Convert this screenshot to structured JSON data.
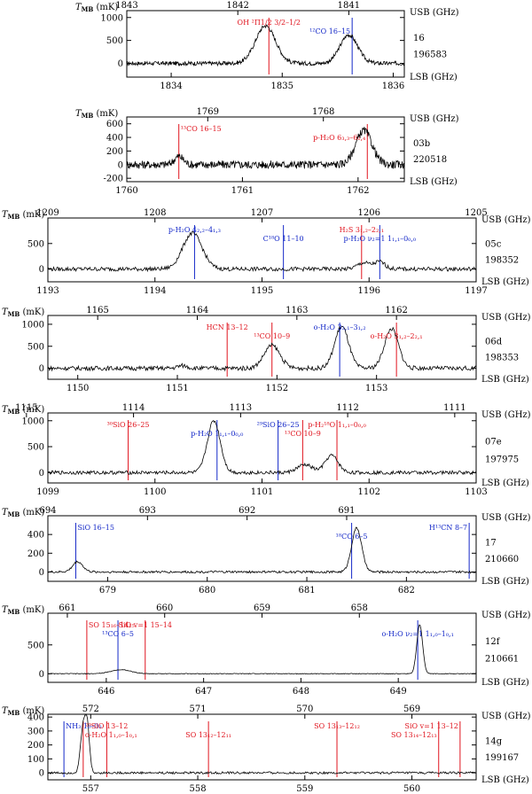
{
  "page": {
    "background": "#ffffff",
    "trace_color": "#000000",
    "red_line": "#e0141e",
    "blue_line": "#1428c8"
  },
  "chart_data": [
    {
      "type": "line",
      "y_title": "TMB (mK)",
      "usb_unit": "USB (GHz)",
      "lsb_unit": "LSB (GHz)",
      "band": "16",
      "obsid": "196583",
      "xlim": [
        1833.6,
        1836.1
      ],
      "ylim": [
        -300,
        1150
      ],
      "yticks": [
        0,
        500,
        1000
      ],
      "lsb_ticks": [
        1834,
        1835,
        1836
      ],
      "usb_ticks": [
        1843,
        1842,
        1841
      ],
      "usb_sum": 3676.6,
      "noise": 45,
      "baseline": [
        {
          "x": 1833.6,
          "y": 0
        },
        {
          "x": 1836.1,
          "y": 0
        }
      ],
      "peaks": [
        {
          "center": 1834.85,
          "amp": 820,
          "width": 0.09
        },
        {
          "center": 1835.6,
          "amp": 620,
          "width": 0.08
        }
      ],
      "lines": [
        {
          "x": 1834.88,
          "side": "LSB",
          "color": "red",
          "label": "OH ²Π1/2 3/2–1/2"
        },
        {
          "x": 1835.63,
          "side": "USB",
          "color": "blue",
          "label": "¹²CO 16–15"
        }
      ]
    },
    {
      "type": "line",
      "y_title": "TMB (mK)",
      "usb_unit": "USB (GHz)",
      "lsb_unit": "LSB (GHz)",
      "band": "03b",
      "obsid": "220518",
      "xlim": [
        1760,
        1762.4
      ],
      "ylim": [
        -250,
        700
      ],
      "yticks": [
        -200,
        0,
        200,
        400,
        600
      ],
      "lsb_ticks": [
        1760,
        1761,
        1762
      ],
      "usb_ticks": [
        1769,
        1768
      ],
      "usb_sum": 3529.7,
      "noise": 60,
      "baseline": [
        {
          "x": 1760,
          "y": 0
        },
        {
          "x": 1762.4,
          "y": 0
        }
      ],
      "peaks": [
        {
          "center": 1760.45,
          "amp": 120,
          "width": 0.04
        },
        {
          "center": 1762.05,
          "amp": 500,
          "width": 0.07
        }
      ],
      "lines": [
        {
          "x": 1760.45,
          "side": "LSB",
          "color": "red",
          "label": "¹³CO 16–15"
        },
        {
          "x": 1762.08,
          "side": "LSB",
          "color": "red",
          "label": "p-H₂O 6₃,₃–6₂,₄"
        }
      ]
    },
    {
      "type": "line",
      "y_title": "TMB (mK)",
      "usb_unit": "USB (GHz)",
      "lsb_unit": "LSB (GHz)",
      "band": "05c",
      "obsid": "198352",
      "xlim": [
        1193,
        1197
      ],
      "ylim": [
        -250,
        1000
      ],
      "yticks": [
        0,
        500
      ],
      "lsb_ticks": [
        1193,
        1194,
        1195,
        1196,
        1197
      ],
      "usb_ticks": [
        1209,
        1208,
        1207,
        1206,
        1205
      ],
      "usb_sum": 2402,
      "noise": 40,
      "baseline": [
        {
          "x": 1193,
          "y": 0
        },
        {
          "x": 1197,
          "y": 0
        }
      ],
      "peaks": [
        {
          "center": 1194.35,
          "amp": 700,
          "width": 0.09
        },
        {
          "center": 1195.95,
          "amp": 120,
          "width": 0.06
        },
        {
          "center": 1196.1,
          "amp": 140,
          "width": 0.05
        }
      ],
      "lines": [
        {
          "x": 1194.37,
          "side": "USB",
          "color": "blue",
          "label": "p-H₂O 4₂,₂–4₁,₃"
        },
        {
          "x": 1195.2,
          "side": "USB",
          "color": "blue",
          "label": "C¹⁸O 11–10"
        },
        {
          "x": 1195.93,
          "side": "LSB",
          "color": "red",
          "label": "H₂S 3₁,₂–2₂,₁"
        },
        {
          "x": 1196.1,
          "side": "USB",
          "color": "blue",
          "label": "p-H₂O ν₂=1 1₁,₁–0₀,₀"
        }
      ]
    },
    {
      "type": "line",
      "y_title": "TMB (mK)",
      "usb_unit": "USB (GHz)",
      "lsb_unit": "LSB (GHz)",
      "band": "06d",
      "obsid": "198353",
      "xlim": [
        1149.7,
        1154
      ],
      "ylim": [
        -250,
        1200
      ],
      "yticks": [
        0,
        500,
        1000
      ],
      "lsb_ticks": [
        1150,
        1151,
        1152,
        1153
      ],
      "usb_ticks": [
        1165,
        1164,
        1163,
        1162
      ],
      "usb_sum": 2315.2,
      "noise": 50,
      "baseline": [
        {
          "x": 1149.7,
          "y": 0
        },
        {
          "x": 1154,
          "y": 0
        }
      ],
      "peaks": [
        {
          "center": 1151.05,
          "amp": 60,
          "width": 0.05
        },
        {
          "center": 1151.95,
          "amp": 520,
          "width": 0.08
        },
        {
          "center": 1152.65,
          "amp": 950,
          "width": 0.07
        },
        {
          "center": 1153.15,
          "amp": 900,
          "width": 0.07
        }
      ],
      "lines": [
        {
          "x": 1151.5,
          "side": "LSB",
          "color": "red",
          "label": "HCN 13–12"
        },
        {
          "x": 1151.95,
          "side": "LSB",
          "color": "red",
          "label": "¹³CO 10–9"
        },
        {
          "x": 1152.63,
          "side": "USB",
          "color": "blue",
          "label": "o-H₂O 3₂,₁–3₁,₂"
        },
        {
          "x": 1153.2,
          "side": "LSB",
          "color": "red",
          "label": "o-H₂O 3₁,₂–2₂,₁"
        }
      ]
    },
    {
      "type": "line",
      "y_title": "TMB (mK)",
      "usb_unit": "USB (GHz)",
      "lsb_unit": "LSB (GHz)",
      "band": "07e",
      "obsid": "197975",
      "xlim": [
        1099,
        1103
      ],
      "ylim": [
        -200,
        1150
      ],
      "yticks": [
        0,
        500,
        1000
      ],
      "lsb_ticks": [
        1099,
        1100,
        1101,
        1102,
        1103
      ],
      "usb_ticks": [
        1115,
        1114,
        1113,
        1112,
        1111
      ],
      "usb_sum": 2213.8,
      "noise": 35,
      "baseline": [
        {
          "x": 1099,
          "y": 0
        },
        {
          "x": 1103,
          "y": 0
        }
      ],
      "peaks": [
        {
          "center": 1100.55,
          "amp": 1000,
          "width": 0.06
        },
        {
          "center": 1101.4,
          "amp": 150,
          "width": 0.07
        },
        {
          "center": 1101.65,
          "amp": 330,
          "width": 0.06
        }
      ],
      "lines": [
        {
          "x": 1099.75,
          "side": "LSB",
          "color": "red",
          "label": "³⁰SiO 26–25"
        },
        {
          "x": 1100.58,
          "side": "USB",
          "color": "blue",
          "label": "p-H₂O 1₁,₁–0₀,₀"
        },
        {
          "x": 1101.15,
          "side": "USB",
          "color": "blue",
          "label": "²⁹SiO 26–25"
        },
        {
          "x": 1101.38,
          "side": "LSB",
          "color": "red",
          "label": "¹³CO 10–9"
        },
        {
          "x": 1101.7,
          "side": "LSB",
          "color": "red",
          "label": "p-H₂¹⁸O 1₁,₁–0₀,₀"
        }
      ]
    },
    {
      "type": "line",
      "y_title": "TMB (mK)",
      "usb_unit": "USB (GHz)",
      "lsb_unit": "LSB (GHz)",
      "band": "17",
      "obsid": "210660",
      "xlim": [
        678.4,
        682.7
      ],
      "ylim": [
        -100,
        600
      ],
      "yticks": [
        0,
        200,
        400
      ],
      "lsb_ticks": [
        679,
        680,
        681,
        682
      ],
      "usb_ticks": [
        694,
        693,
        692,
        691
      ],
      "usb_sum": 1372.4,
      "noise": 12,
      "baseline": [
        {
          "x": 678.4,
          "y": 0
        },
        {
          "x": 682.7,
          "y": 0
        }
      ],
      "peaks": [
        {
          "center": 678.7,
          "amp": 110,
          "width": 0.05
        },
        {
          "center": 681.5,
          "amp": 470,
          "width": 0.05
        }
      ],
      "lines": [
        {
          "x": 678.68,
          "side": "USB",
          "color": "blue",
          "label": "SiO 16–15"
        },
        {
          "x": 681.45,
          "side": "USB",
          "color": "blue",
          "label": "¹⁸CO 6–5"
        },
        {
          "x": 682.63,
          "side": "USB",
          "color": "blue",
          "label": "H¹³CN 8–7"
        }
      ]
    },
    {
      "type": "line",
      "y_title": "TMB (mK)",
      "usb_unit": "USB (GHz)",
      "lsb_unit": "LSB (GHz)",
      "band": "12f",
      "obsid": "210661",
      "xlim": [
        645.4,
        649.8
      ],
      "ylim": [
        -150,
        1050
      ],
      "yticks": [
        0,
        500
      ],
      "lsb_ticks": [
        646,
        647,
        648,
        649
      ],
      "usb_ticks": [
        661,
        660,
        659,
        658
      ],
      "usb_sum": 1306.6,
      "noise": 6,
      "baseline": [
        {
          "x": 645.4,
          "y": 0
        },
        {
          "x": 649.8,
          "y": 0
        }
      ],
      "peaks": [
        {
          "center": 646.15,
          "amp": 70,
          "width": 0.1
        },
        {
          "center": 649.22,
          "amp": 850,
          "width": 0.03
        }
      ],
      "lines": [
        {
          "x": 645.8,
          "side": "LSB",
          "color": "red",
          "label": "SO 15₁₆–14₁₅"
        },
        {
          "x": 646.12,
          "side": "USB",
          "color": "blue",
          "label": "¹³CO 6–5"
        },
        {
          "x": 646.4,
          "side": "LSB",
          "color": "red",
          "label": "SiO v=1 15–14"
        },
        {
          "x": 649.2,
          "side": "USB",
          "color": "blue",
          "label": "o-H₂O ν₂=1 1₁,₀–1₀,₁"
        }
      ]
    },
    {
      "type": "line",
      "y_title": "TMB (mK)",
      "usb_unit": "USB (GHz)",
      "lsb_unit": "LSB (GHz)",
      "band": "14g",
      "obsid": "199167",
      "xlim": [
        556.6,
        560.6
      ],
      "ylim": [
        -50,
        420
      ],
      "yticks": [
        0,
        100,
        200,
        300,
        400
      ],
      "lsb_ticks": [
        557,
        558,
        559,
        560
      ],
      "usb_ticks": [
        572,
        571,
        570,
        569
      ],
      "usb_sum": 1129,
      "noise": 8,
      "baseline": [
        {
          "x": 556.6,
          "y": 0
        },
        {
          "x": 560.6,
          "y": 0
        }
      ],
      "peaks": [
        {
          "center": 556.93,
          "amp": 330,
          "width": 0.025
        },
        {
          "center": 556.97,
          "amp": 300,
          "width": 0.02
        }
      ],
      "lines": [
        {
          "x": 556.75,
          "side": "USB",
          "color": "blue",
          "label": "NH₃ 1₀–0₀"
        },
        {
          "x": 556.93,
          "side": "LSB",
          "color": "red",
          "label": "o-H₂O 1₁,₀–1₀,₁"
        },
        {
          "x": 557.15,
          "side": "LSB",
          "color": "red",
          "label": "²⁹SiO 13–12"
        },
        {
          "x": 558.1,
          "side": "LSB",
          "color": "red",
          "label": "SO 13₁₂–12₁₁"
        },
        {
          "x": 559.3,
          "side": "LSB",
          "color": "red",
          "label": "SO 13₁₃–12₁₂"
        },
        {
          "x": 560.25,
          "side": "LSB",
          "color": "red",
          "label": "SO 13₁₄–12₁₃"
        },
        {
          "x": 560.45,
          "side": "LSB",
          "color": "red",
          "label": "SiO v=1 13–12"
        }
      ]
    }
  ]
}
